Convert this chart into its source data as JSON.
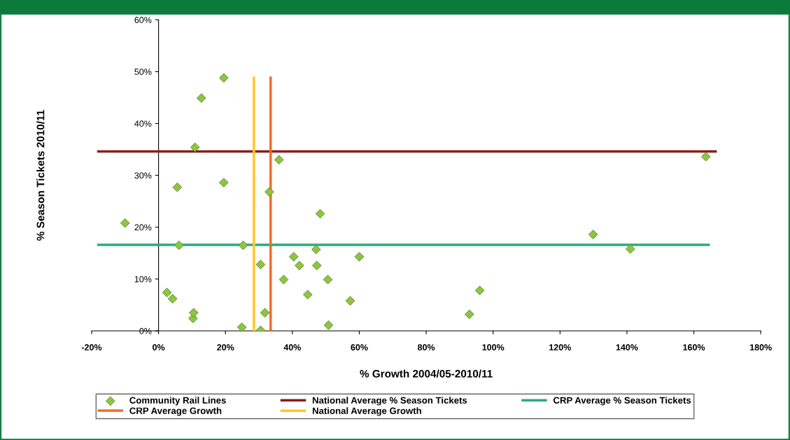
{
  "chart_data": {
    "type": "scatter",
    "xlabel": "% Growth 2004/05-2010/11",
    "ylabel": "% Season Tickets 2010/11",
    "xlim": [
      -20,
      180
    ],
    "ylim": [
      0,
      60
    ],
    "xticks": [
      {
        "value": -20,
        "label": "-20%"
      },
      {
        "value": 0,
        "label": "0%"
      },
      {
        "value": 20,
        "label": "20%"
      },
      {
        "value": 40,
        "label": "40%"
      },
      {
        "value": 60,
        "label": "60%"
      },
      {
        "value": 80,
        "label": "80%"
      },
      {
        "value": 100,
        "label": "100%"
      },
      {
        "value": 120,
        "label": "120%"
      },
      {
        "value": 140,
        "label": "140%"
      },
      {
        "value": 160,
        "label": "160%"
      },
      {
        "value": 180,
        "label": "180%"
      }
    ],
    "yticks": [
      {
        "value": 0,
        "label": "0%"
      },
      {
        "value": 10,
        "label": "10%"
      },
      {
        "value": 20,
        "label": "20%"
      },
      {
        "value": 30,
        "label": "30%"
      },
      {
        "value": 40,
        "label": "40%"
      },
      {
        "value": 50,
        "label": "50%"
      },
      {
        "value": 60,
        "label": "60%"
      }
    ],
    "grid": false,
    "legend": "bottom",
    "series": [
      {
        "name": "Community Rail Lines",
        "marker": "diamond",
        "color": "#8cc63f",
        "x": [
          -10.0,
          2.5,
          4.2,
          5.6,
          6.1,
          10.3,
          10.5,
          10.9,
          12.8,
          19.5,
          19.5,
          25.3,
          24.9,
          30.5,
          30.5,
          31.8,
          33.1,
          36.0,
          37.4,
          40.4,
          42.1,
          44.6,
          47.1,
          47.3,
          48.3,
          50.6,
          50.8,
          57.3,
          60.0,
          92.9,
          96.0,
          129.9,
          141.0,
          163.6
        ],
        "values": [
          20.8,
          7.4,
          6.2,
          27.7,
          16.5,
          2.4,
          3.5,
          35.4,
          44.9,
          48.8,
          28.6,
          16.5,
          0.7,
          0.1,
          12.8,
          3.5,
          26.8,
          33.0,
          9.9,
          14.3,
          12.6,
          7.0,
          15.7,
          12.6,
          22.6,
          9.9,
          1.1,
          5.8,
          14.3,
          3.2,
          7.8,
          18.6,
          15.8,
          33.6
        ]
      },
      {
        "name": "National Average % Season Tickets",
        "type": "line",
        "color": "#8b1c1c",
        "x": [
          -18,
          166.5
        ],
        "values": [
          34.6,
          34.6
        ]
      },
      {
        "name": "CRP Average % Season Tickets",
        "type": "line",
        "color": "#2bab7c",
        "x": [
          -18,
          164.4
        ],
        "values": [
          16.6,
          16.6
        ]
      },
      {
        "name": "CRP Average Growth",
        "type": "line",
        "color": "#f26b2a",
        "x": [
          33.5,
          33.5
        ],
        "values": [
          0,
          48.8
        ]
      },
      {
        "name": "National Average Growth",
        "type": "line",
        "color": "#ffc820",
        "x": [
          28.5,
          28.5
        ],
        "values": [
          0,
          48.8
        ]
      }
    ]
  }
}
